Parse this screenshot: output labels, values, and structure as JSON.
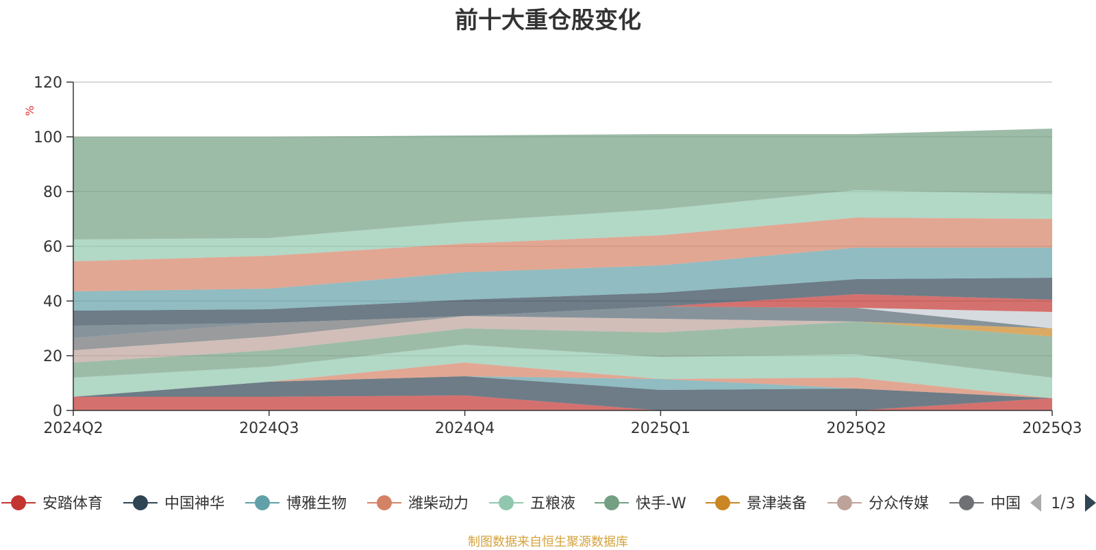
{
  "chart_data": {
    "type": "area",
    "stacked": true,
    "title": "前十大重仓股变化",
    "ylabel": "%",
    "ylim": [
      0,
      120
    ],
    "yticks": [
      0,
      20,
      40,
      60,
      80,
      100,
      120
    ],
    "categories": [
      "2024Q2",
      "2024Q3",
      "2024Q4",
      "2025Q1",
      "2025Q2",
      "2025Q3"
    ],
    "series": [
      {
        "name": "安踏体育",
        "color": "#c23531",
        "values": [
          5,
          5,
          5.5,
          0,
          0,
          4.5
        ]
      },
      {
        "name": "中国神华",
        "color": "#2f4554",
        "values": [
          0,
          5.5,
          7,
          7.5,
          8,
          0
        ]
      },
      {
        "name": "博雅生物",
        "color": "#61a0a8",
        "values": [
          0,
          0,
          0,
          4,
          0,
          0
        ]
      },
      {
        "name": "潍柴动力",
        "color": "#d48265",
        "values": [
          0,
          0,
          5,
          0,
          4,
          0
        ]
      },
      {
        "name": "五粮液",
        "color": "#91c7ae",
        "values": [
          7,
          5.5,
          6.5,
          8,
          8.5,
          7.5
        ]
      },
      {
        "name": "快手-W",
        "color": "#749f83",
        "values": [
          5.5,
          6,
          6,
          9,
          12,
          15
        ]
      },
      {
        "name": "景津装备",
        "color": "#ca8622",
        "values": [
          0,
          0,
          0,
          0,
          0,
          3
        ]
      },
      {
        "name": "分众传媒",
        "color": "#bda29a",
        "values": [
          4.5,
          5,
          4.5,
          5,
          0,
          0
        ]
      },
      {
        "name": "中国",
        "color": "#6e7074",
        "values": [
          4.5,
          5,
          0,
          0,
          0,
          0
        ]
      },
      {
        "name": "",
        "color": "#546570",
        "values": [
          4.5,
          0,
          0,
          4.5,
          5,
          0
        ]
      },
      {
        "name": "",
        "color": "#c4ccd3",
        "values": [
          0,
          0,
          0,
          0,
          0,
          6
        ]
      },
      {
        "name": "",
        "color": "#c23531",
        "values": [
          0,
          0,
          0,
          0,
          5,
          4.5
        ]
      },
      {
        "name": "",
        "color": "#2f4554",
        "values": [
          5.5,
          5,
          6,
          5,
          5.5,
          8
        ]
      },
      {
        "name": "",
        "color": "#61a0a8",
        "values": [
          7,
          7.5,
          10,
          10,
          11.5,
          11
        ]
      },
      {
        "name": "",
        "color": "#d48265",
        "values": [
          11,
          12,
          10.5,
          11,
          11,
          10.5
        ]
      },
      {
        "name": "",
        "color": "#91c7ae",
        "values": [
          8,
          6.5,
          8,
          9.5,
          10,
          9
        ]
      },
      {
        "name": "",
        "color": "#749f83",
        "values": [
          37.5,
          37,
          31.5,
          27.5,
          20.5,
          24
        ]
      }
    ],
    "legend_visible": [
      "安踏体育",
      "中国神华",
      "博雅生物",
      "潍柴动力",
      "五粮液",
      "快手-W",
      "景津装备",
      "分众传媒",
      "中国"
    ],
    "legend_page": "1/3",
    "grid": true
  },
  "footer": {
    "source": "制图数据来自恒生聚源数据库"
  }
}
